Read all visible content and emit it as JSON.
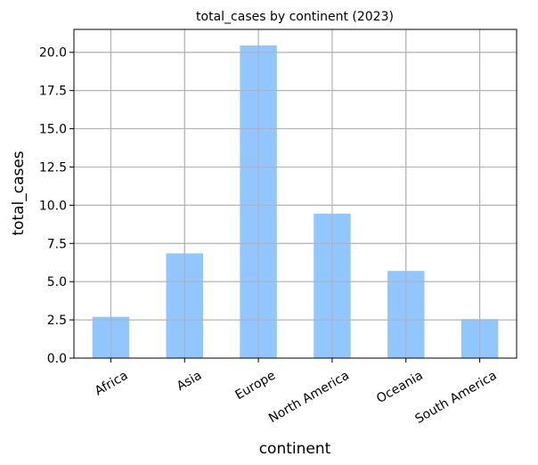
{
  "chart_data": {
    "type": "bar",
    "title": "total_cases by continent (2023)",
    "xlabel": "continent",
    "ylabel": "total_cases",
    "categories": [
      "Africa",
      "Asia",
      "Europe",
      "North America",
      "Oceania",
      "South America"
    ],
    "values": [
      2.7,
      6.85,
      20.45,
      9.45,
      5.7,
      2.55
    ],
    "ylim": [
      0,
      21.5
    ],
    "yticks": [
      "0.0",
      "2.5",
      "5.0",
      "7.5",
      "10.0",
      "12.5",
      "15.0",
      "17.5",
      "20.0"
    ],
    "grid": true,
    "bar_color": "#92c6ff"
  }
}
